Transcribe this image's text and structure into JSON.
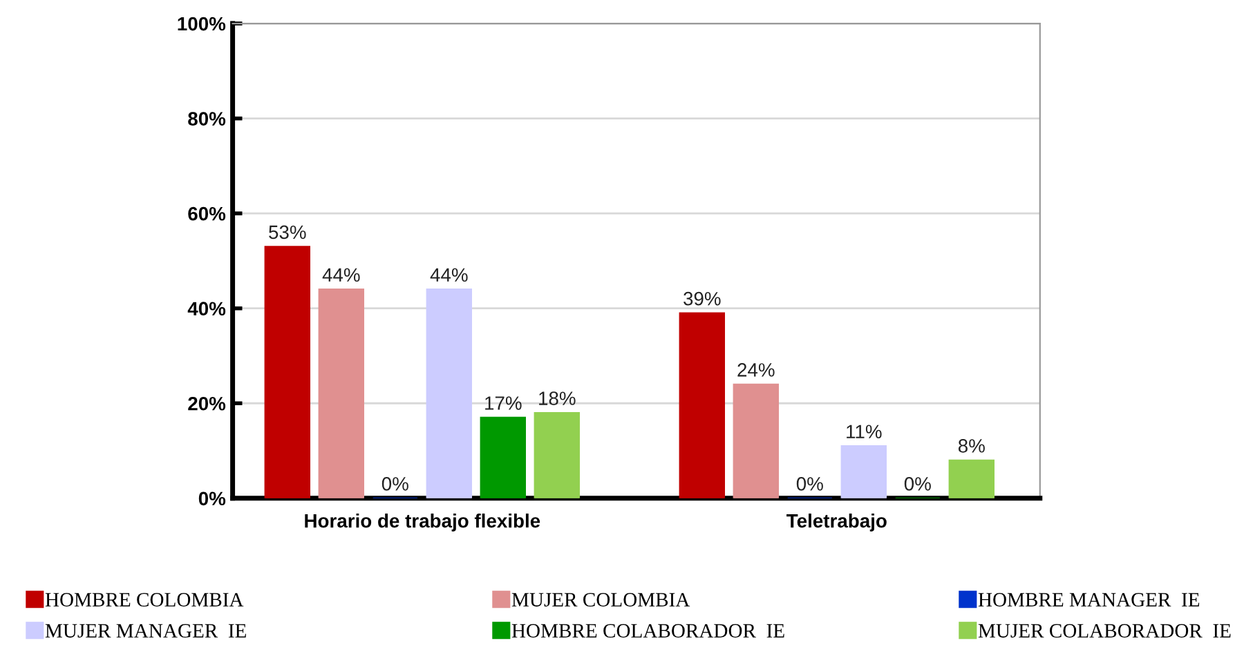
{
  "chart_data": {
    "type": "bar",
    "categories": [
      "Horario de trabajo flexible",
      "Teletrabajo"
    ],
    "series": [
      {
        "name": "HOMBRE COLOMBIA",
        "color": "#c00000",
        "values": [
          53,
          39
        ],
        "value_labels": [
          "53%",
          "39%"
        ]
      },
      {
        "name": "MUJER COLOMBIA",
        "color": "#e09090",
        "values": [
          44,
          24
        ],
        "value_labels": [
          "44%",
          "24%"
        ]
      },
      {
        "name": "HOMBRE MANAGER  IE",
        "color": "#0033cc",
        "values": [
          0,
          0
        ],
        "value_labels": [
          "0%",
          "0%"
        ]
      },
      {
        "name": "MUJER MANAGER  IE",
        "color": "#ccccff",
        "values": [
          44,
          11
        ],
        "value_labels": [
          "44%",
          "11%"
        ]
      },
      {
        "name": "HOMBRE COLABORADOR  IE",
        "color": "#009900",
        "values": [
          17,
          0
        ],
        "value_labels": [
          "17%",
          "0%"
        ]
      },
      {
        "name": "MUJER COLABORADOR  IE",
        "color": "#92d050",
        "values": [
          18,
          8
        ],
        "value_labels": [
          "18%",
          "8%"
        ]
      }
    ],
    "ylim": [
      0,
      100
    ],
    "yticks": [
      {
        "value": 0,
        "label": "0%"
      },
      {
        "value": 20,
        "label": "20%"
      },
      {
        "value": 40,
        "label": "40%"
      },
      {
        "value": 60,
        "label": "60%"
      },
      {
        "value": 80,
        "label": "80%"
      },
      {
        "value": 100,
        "label": "100%"
      }
    ],
    "grid": "y",
    "legend": "bottom"
  }
}
